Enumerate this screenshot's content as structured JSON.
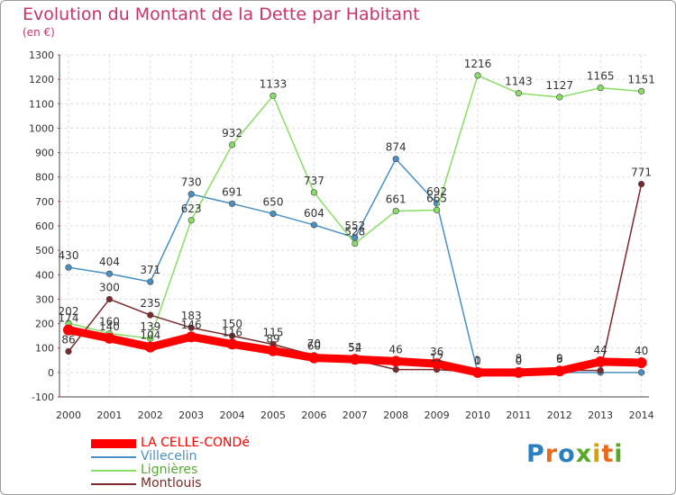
{
  "title": "Evolution du Montant de la Dette par Habitant",
  "unit": "(en €)",
  "logo": "Proxiti",
  "chart_data": {
    "type": "line",
    "title": "Evolution du Montant de la Dette par Habitant",
    "ylabel": "(en €)",
    "xlabel": "",
    "x": [
      2000,
      2001,
      2002,
      2003,
      2004,
      2005,
      2006,
      2007,
      2008,
      2009,
      2010,
      2011,
      2012,
      2013,
      2014
    ],
    "ylim": [
      -100,
      1300
    ],
    "yticks": [
      -100,
      0,
      100,
      200,
      300,
      400,
      500,
      600,
      700,
      800,
      900,
      1000,
      1100,
      1200,
      1300
    ],
    "grid": true,
    "legend": "bottom-left",
    "series": [
      {
        "name": "LA CELLE-CONDé",
        "color": "#ff0000",
        "values": [
          174,
          140,
          104,
          146,
          116,
          89,
          60,
          54,
          46,
          36,
          0,
          0,
          6,
          44,
          40
        ],
        "labels": [
          "174",
          "140",
          "104",
          "146",
          "116",
          "89",
          "60",
          "54",
          "46",
          "36",
          "0",
          "0",
          "6",
          "44",
          "40"
        ]
      },
      {
        "name": "Villecelin",
        "color": "#4a90c4",
        "values": [
          430,
          404,
          371,
          730,
          691,
          650,
          604,
          552,
          874,
          692,
          0,
          0,
          0,
          0,
          0
        ],
        "labels": [
          "430",
          "404",
          "371",
          "730",
          "691",
          "650",
          "604",
          "552",
          "874",
          "692",
          "",
          "",
          "",
          "",
          ""
        ]
      },
      {
        "name": "Lignières",
        "color": "#88dd66",
        "values": [
          202,
          160,
          139,
          623,
          932,
          1133,
          737,
          528,
          661,
          665,
          1216,
          1143,
          1127,
          1165,
          1151
        ],
        "labels": [
          "202",
          "160",
          "139",
          "623",
          "932",
          "1133",
          "737",
          "528",
          "661",
          "665",
          "1216",
          "1143",
          "1127",
          "1165",
          "1151"
        ]
      },
      {
        "name": "Montlouis",
        "color": "#7a2a2a",
        "values": [
          86,
          300,
          235,
          183,
          150,
          115,
          70,
          52,
          12,
          12,
          1,
          8,
          9,
          8,
          771
        ],
        "labels": [
          "86",
          "300",
          "235",
          "183",
          "150",
          "115",
          "70",
          "52",
          "",
          "12",
          "1",
          "8",
          "9",
          "",
          "771"
        ]
      }
    ]
  }
}
